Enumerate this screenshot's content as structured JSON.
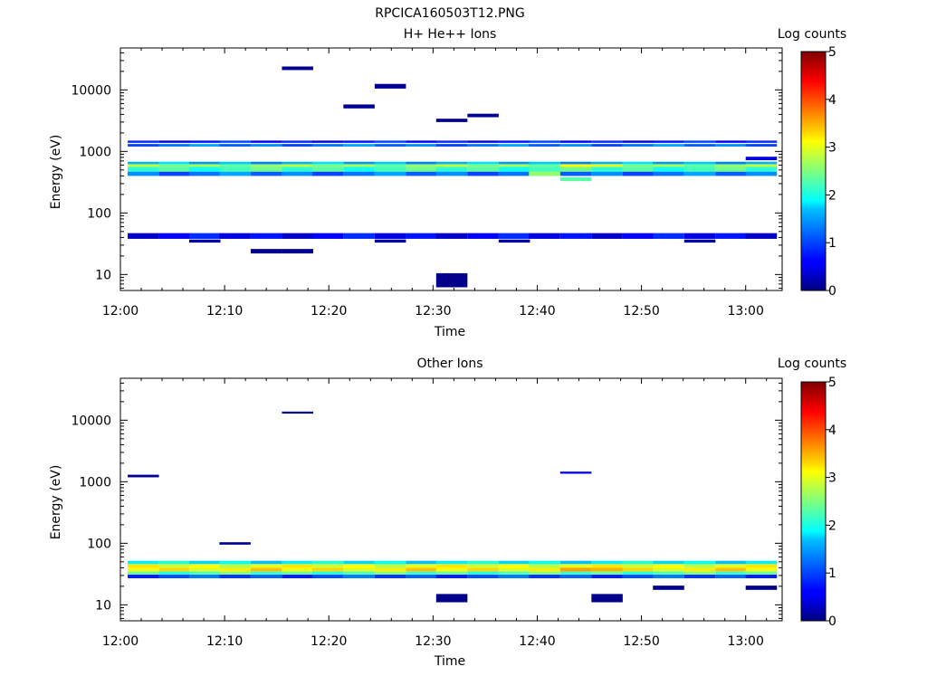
{
  "figure_title": "RPCICA160503T12.PNG",
  "chart_data": [
    {
      "type": "heatmap",
      "title": "H+ He++ Ions",
      "xlabel": "Time",
      "ylabel": "Energy (eV)",
      "x_ticks": [
        "12:00",
        "12:10",
        "12:20",
        "12:30",
        "12:40",
        "12:50",
        "13:00"
      ],
      "y_ticks": [
        "10",
        "100",
        "1000",
        "10000"
      ],
      "y_scale": "log",
      "ylim": [
        5.5,
        48000
      ],
      "xlim": [
        "12:00",
        "13:03.5"
      ],
      "colorbar": {
        "label": "Log counts",
        "min": 0,
        "max": 5,
        "ticks": [
          "0",
          "1",
          "2",
          "3",
          "4",
          "5"
        ]
      },
      "time_columns_min": [
        2.2,
        5.2,
        8.1,
        11.0,
        14.0,
        17.0,
        19.9,
        22.9,
        25.9,
        28.9,
        31.8,
        34.8,
        37.8,
        40.7,
        43.7,
        46.7,
        49.7,
        52.6,
        55.6,
        58.6,
        61.5
      ],
      "column_width_min": 3.0,
      "bands": [
        {
          "e_low": 38,
          "e_high": 47,
          "level": 0.6
        },
        {
          "e_low": 400,
          "e_high": 470,
          "level": 1.2
        },
        {
          "e_low": 470,
          "e_high": 560,
          "level": 2.2
        },
        {
          "e_low": 560,
          "e_high": 620,
          "level": 2.6
        },
        {
          "e_low": 620,
          "e_high": 680,
          "level": 1.5
        },
        {
          "e_low": 1200,
          "e_high": 1320,
          "level": 1.2
        },
        {
          "e_low": 1380,
          "e_high": 1500,
          "level": 0.7
        }
      ],
      "cells": [
        {
          "t": 31.8,
          "e_low": 6.2,
          "e_high": 10.5,
          "level": 0.05
        },
        {
          "t": 14.0,
          "e_low": 22,
          "e_high": 26,
          "level": 0.1
        },
        {
          "t": 17.0,
          "e_low": 22,
          "e_high": 26,
          "level": 0.1
        },
        {
          "t": 8.1,
          "e_low": 33,
          "e_high": 37,
          "level": 0.2
        },
        {
          "t": 25.9,
          "e_low": 33,
          "e_high": 37,
          "level": 0.2
        },
        {
          "t": 37.8,
          "e_low": 33,
          "e_high": 37,
          "level": 0.2
        },
        {
          "t": 55.6,
          "e_low": 33,
          "e_high": 37,
          "level": 0.2
        },
        {
          "t": 40.7,
          "e_low": 400,
          "e_high": 470,
          "level": 2.6
        },
        {
          "t": 43.7,
          "e_low": 330,
          "e_high": 380,
          "level": 2.3
        },
        {
          "t": 46.7,
          "e_low": 560,
          "e_high": 620,
          "level": 3.0
        },
        {
          "t": 43.7,
          "e_low": 560,
          "e_high": 620,
          "level": 3.1
        },
        {
          "t": 31.8,
          "e_low": 3000,
          "e_high": 3400,
          "level": 0.1
        },
        {
          "t": 34.8,
          "e_low": 3600,
          "e_high": 4100,
          "level": 0.1
        },
        {
          "t": 17.0,
          "e_low": 21000,
          "e_high": 24000,
          "level": 0.1
        },
        {
          "t": 25.9,
          "e_low": 10500,
          "e_high": 12500,
          "level": 0.1
        },
        {
          "t": 22.9,
          "e_low": 5000,
          "e_high": 5800,
          "level": 0.1
        },
        {
          "t": 61.5,
          "e_low": 720,
          "e_high": 820,
          "level": 0.6
        }
      ]
    },
    {
      "type": "heatmap",
      "title": "Other Ions",
      "xlabel": "Time",
      "ylabel": "Energy (eV)",
      "x_ticks": [
        "12:00",
        "12:10",
        "12:20",
        "12:30",
        "12:40",
        "12:50",
        "13:00"
      ],
      "y_ticks": [
        "10",
        "100",
        "1000",
        "10000"
      ],
      "y_scale": "log",
      "ylim": [
        5.5,
        48000
      ],
      "xlim": [
        "12:00",
        "13:03.5"
      ],
      "colorbar": {
        "label": "Log counts",
        "min": 0,
        "max": 5,
        "ticks": [
          "0",
          "1",
          "2",
          "3",
          "4",
          "5"
        ]
      },
      "time_columns_min": [
        2.2,
        5.2,
        8.1,
        11.0,
        14.0,
        17.0,
        19.9,
        22.9,
        25.9,
        28.9,
        31.8,
        34.8,
        37.8,
        40.7,
        43.7,
        46.7,
        49.7,
        52.6,
        55.6,
        58.6,
        61.5
      ],
      "column_width_min": 3.0,
      "bands": [
        {
          "e_low": 27,
          "e_high": 31,
          "level": 1.0
        },
        {
          "e_low": 31,
          "e_high": 35,
          "level": 2.3
        },
        {
          "e_low": 35,
          "e_high": 40,
          "level": 3.2
        },
        {
          "e_low": 40,
          "e_high": 46,
          "level": 3.0
        },
        {
          "e_low": 46,
          "e_high": 52,
          "level": 1.8
        }
      ],
      "cells": [
        {
          "t": 31.8,
          "e_low": 11,
          "e_high": 15,
          "level": 0.05
        },
        {
          "t": 46.7,
          "e_low": 11,
          "e_high": 15,
          "level": 0.05
        },
        {
          "t": 52.6,
          "e_low": 17.5,
          "e_high": 20.5,
          "level": 0.05
        },
        {
          "t": 61.5,
          "e_low": 17.5,
          "e_high": 20.5,
          "level": 0.05
        },
        {
          "t": 17.0,
          "e_low": 12800,
          "e_high": 13800,
          "level": 0.1
        },
        {
          "t": 2.2,
          "e_low": 1180,
          "e_high": 1300,
          "level": 0.1
        },
        {
          "t": 43.7,
          "e_low": 1350,
          "e_high": 1460,
          "level": 0.6
        },
        {
          "t": 11.0,
          "e_low": 95,
          "e_high": 104,
          "level": 0.1
        },
        {
          "t": 43.7,
          "e_low": 35,
          "e_high": 40,
          "level": 3.6
        },
        {
          "t": 46.7,
          "e_low": 35,
          "e_high": 40,
          "level": 3.5
        }
      ]
    }
  ]
}
